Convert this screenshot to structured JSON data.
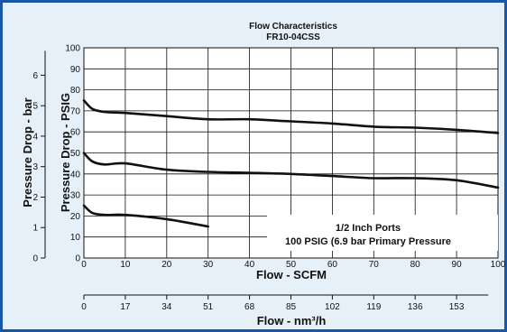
{
  "chart_data": {
    "type": "line",
    "title": "Flow Characteristics",
    "subtitle": "FR10-04CSS",
    "xlabel": "Flow - SCFM",
    "x2label": "Flow - nm³/h",
    "ylabel": "Pressure Drop - PSIG",
    "y2label": "Pressure Drop - bar",
    "xlim": [
      0,
      100
    ],
    "ylim": [
      0,
      100
    ],
    "x_ticks": [
      "0",
      "10",
      "20",
      "30",
      "40",
      "50",
      "60",
      "70",
      "80",
      "90",
      "100"
    ],
    "y_ticks": [
      "0",
      "10",
      "20",
      "30",
      "40",
      "50",
      "60",
      "70",
      "80",
      "90",
      "100"
    ],
    "x2_ticks": [
      "0",
      "17",
      "34",
      "51",
      "68",
      "85",
      "102",
      "119",
      "136",
      "153"
    ],
    "y2_ticks": [
      "0",
      "1",
      "2",
      "3",
      "4",
      "5",
      "6"
    ],
    "grid": true,
    "annotation": [
      "1/2 Inch Ports",
      "100 PSIG (6.9 bar Primary Pressure"
    ],
    "series": [
      {
        "x": [
          0,
          2,
          5,
          10,
          20,
          30,
          40,
          50,
          60,
          70,
          80,
          90,
          100
        ],
        "y": [
          75,
          71,
          69.5,
          69,
          67.5,
          66,
          66,
          65,
          64,
          62.5,
          62,
          61,
          59.5
        ]
      },
      {
        "x": [
          0,
          2,
          5,
          10,
          20,
          30,
          40,
          50,
          60,
          70,
          80,
          90,
          100
        ],
        "y": [
          50,
          46,
          44.5,
          45,
          42,
          41,
          40.5,
          40,
          39,
          38,
          38,
          37,
          33.5
        ]
      },
      {
        "x": [
          0,
          2,
          5,
          10,
          20,
          30
        ],
        "y": [
          25,
          21.5,
          20.5,
          20.5,
          18.5,
          15
        ]
      }
    ]
  },
  "colors": {
    "frame": "#1a56a6",
    "background": "#e6f0f8",
    "ink": "#111111"
  }
}
